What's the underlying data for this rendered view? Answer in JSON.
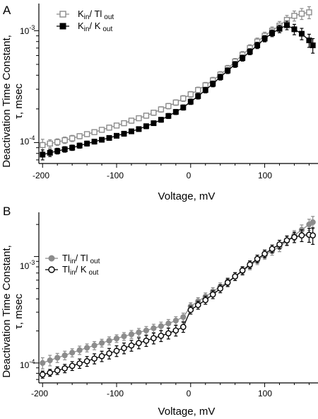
{
  "figure": {
    "panels": [
      {
        "letter": "A",
        "ylabel_line1": "Deactivation Time Constant,",
        "ylabel_line2": "τ, msec",
        "xlabel": "Voltage, mV",
        "xtick_labels": [
          "-200",
          "-100",
          "0",
          "100"
        ],
        "ytick_labels": [
          "10",
          "10"
        ],
        "ytick_exponents": [
          "-4",
          "-3"
        ],
        "legend": [
          {
            "main": "K",
            "sub1": "in",
            "mid": "/ Tl",
            "sub2": "out"
          },
          {
            "main": "K",
            "sub1": "in",
            "mid": "/ K",
            "sub2": "out"
          }
        ]
      },
      {
        "letter": "B",
        "ylabel_line1": "Deactivation Time Constant,",
        "ylabel_line2": "τ, msec",
        "xlabel": "Voltage, mV",
        "xtick_labels": [
          "-200",
          "-100",
          "0",
          "100"
        ],
        "ytick_labels": [
          "10",
          "10"
        ],
        "ytick_exponents": [
          "-4",
          "-3"
        ],
        "legend": [
          {
            "main": "Tl",
            "sub1": "in",
            "mid": "/ Tl",
            "sub2": "out"
          },
          {
            "main": "Tl",
            "sub1": "in",
            "mid": "/ K",
            "sub2": "out"
          }
        ]
      }
    ]
  },
  "chart_data": [
    {
      "type": "scatter",
      "panel": "A",
      "xlabel": "Voltage, mV",
      "ylabel": "Deactivation Time Constant, τ, msec",
      "xlim": [
        -205,
        172
      ],
      "ylim": [
        6.5e-05,
        0.00175
      ],
      "yscale": "log",
      "x_ticks": [
        -200,
        -100,
        0,
        100
      ],
      "y_ticks": [
        0.0001,
        0.001
      ],
      "grid": false,
      "legend_position": "top-left",
      "series": [
        {
          "name": "Kin/ Tlout",
          "color": "#8c8c8c",
          "marker": "open-square",
          "x": [
            -200,
            -190,
            -180,
            -170,
            -160,
            -150,
            -140,
            -130,
            -120,
            -110,
            -100,
            -90,
            -80,
            -70,
            -60,
            -50,
            -40,
            -30,
            -20,
            -10,
            0,
            10,
            20,
            30,
            40,
            50,
            60,
            70,
            80,
            90,
            100,
            110,
            120,
            130,
            140,
            150,
            160
          ],
          "y": [
            9.5e-05,
            9.8e-05,
            0.000101,
            0.000105,
            0.000109,
            0.000114,
            0.000119,
            0.000124,
            0.00013,
            0.000136,
            0.000142,
            0.000149,
            0.000157,
            0.000165,
            0.000174,
            0.000185,
            0.000198,
            0.000212,
            0.000228,
            0.000248,
            0.00027,
            0.000295,
            0.000325,
            0.00036,
            0.000405,
            0.00046,
            0.00053,
            0.00061,
            0.0007,
            0.0008,
            0.0009,
            0.001,
            0.00111,
            0.00125,
            0.00136,
            0.00142,
            0.00146
          ],
          "error": [
            1.2e-05,
            8e-06,
            7e-06,
            7e-06,
            7e-06,
            6e-06,
            6e-06,
            6e-06,
            6e-06,
            7e-06,
            7e-06,
            7e-06,
            8e-06,
            8e-06,
            9e-06,
            1e-05,
            1.1e-05,
            1.2e-05,
            1.3e-05,
            1.5e-05,
            1.6e-05,
            1.8e-05,
            2e-05,
            2.3e-05,
            2.6e-05,
            3e-05,
            3.5e-05,
            4.2e-05,
            5e-05,
            6e-05,
            7e-05,
            8e-05,
            0.0001,
            0.00012,
            0.00014,
            0.00016,
            0.00018
          ]
        },
        {
          "name": "Kin/ Kout",
          "color": "#000000",
          "marker": "filled-square",
          "x": [
            -200,
            -190,
            -180,
            -170,
            -160,
            -150,
            -140,
            -130,
            -120,
            -110,
            -100,
            -90,
            -80,
            -70,
            -60,
            -50,
            -40,
            -30,
            -20,
            -10,
            0,
            10,
            20,
            30,
            40,
            50,
            60,
            70,
            80,
            90,
            100,
            110,
            120,
            130,
            140,
            150,
            160,
            165
          ],
          "y": [
            7.8e-05,
            8.1e-05,
            8.4e-05,
            8.7e-05,
            9e-05,
            9.4e-05,
            9.8e-05,
            0.000102,
            0.000106,
            0.00011,
            0.000115,
            0.00012,
            0.000126,
            0.000132,
            0.00014,
            0.000149,
            0.00016,
            0.000173,
            0.000188,
            0.000206,
            0.000232,
            0.00026,
            0.000295,
            0.000335,
            0.000385,
            0.00044,
            0.0005,
            0.00057,
            0.00065,
            0.00074,
            0.00085,
            0.00095,
            0.00104,
            0.00112,
            0.00103,
            0.00094,
            0.00082,
            0.00074
          ],
          "error": [
            8e-06,
            6e-06,
            5e-06,
            5e-06,
            5e-06,
            5e-06,
            5e-06,
            5e-06,
            5e-06,
            5e-06,
            5e-06,
            6e-06,
            6e-06,
            6e-06,
            7e-06,
            7e-06,
            8e-06,
            9e-06,
            1e-05,
            1.1e-05,
            1.3e-05,
            1.5e-05,
            1.7e-05,
            2e-05,
            2.3e-05,
            2.6e-05,
            3e-05,
            3.5e-05,
            4e-05,
            4.8e-05,
            5.5e-05,
            6.5e-05,
            8e-05,
            0.0001,
            0.00011,
            0.00011,
            0.00011,
            0.00011
          ]
        }
      ]
    },
    {
      "type": "scatter",
      "panel": "B",
      "xlabel": "Voltage, mV",
      "ylabel": "Deactivation Time Constant, τ, msec",
      "xlim": [
        -205,
        172
      ],
      "ylim": [
        6.5e-05,
        0.0026
      ],
      "yscale": "log",
      "x_ticks": [
        -200,
        -100,
        0,
        100
      ],
      "y_ticks": [
        0.0001,
        0.001
      ],
      "grid": false,
      "legend_position": "top-left",
      "series": [
        {
          "name": "Tlin/ Tlout",
          "color": "#8c8c8c",
          "marker": "filled-circle",
          "x": [
            -200,
            -190,
            -180,
            -170,
            -160,
            -150,
            -140,
            -130,
            -120,
            -110,
            -100,
            -90,
            -80,
            -70,
            -60,
            -50,
            -40,
            -30,
            -20,
            -10,
            0,
            10,
            20,
            30,
            40,
            50,
            60,
            70,
            80,
            90,
            100,
            110,
            120,
            130,
            140,
            150,
            160,
            165
          ],
          "y": [
            0.0001,
            0.000106,
            0.000112,
            0.000118,
            0.000125,
            0.000132,
            0.000139,
            0.000146,
            0.000154,
            0.000162,
            0.00017,
            0.000178,
            0.000186,
            0.000194,
            0.000202,
            0.000212,
            0.000222,
            0.000235,
            0.00025,
            0.00027,
            0.00034,
            0.00038,
            0.00042,
            0.00047,
            0.00052,
            0.00058,
            0.00065,
            0.00073,
            0.00082,
            0.00092,
            0.00103,
            0.00113,
            0.00123,
            0.0014,
            0.00158,
            0.00178,
            0.002,
            0.0021
          ],
          "error": [
            1.2e-05,
            1.2e-05,
            1.1e-05,
            1.1e-05,
            1.1e-05,
            1.2e-05,
            1.2e-05,
            1.3e-05,
            1.3e-05,
            1.4e-05,
            1.4e-05,
            1.5e-05,
            1.6e-05,
            1.7e-05,
            1.8e-05,
            1.9e-05,
            2e-05,
            2.1e-05,
            2.2e-05,
            2.4e-05,
            2.8e-05,
            3.1e-05,
            3.5e-05,
            4e-05,
            4.5e-05,
            5e-05,
            5.6e-05,
            6.3e-05,
            7e-05,
            8e-05,
            9e-05,
            0.0001,
            0.00012,
            0.00014,
            0.00017,
            0.0002,
            0.00024,
            0.00028
          ]
        },
        {
          "name": "Tlin/ Kout",
          "color": "#000000",
          "marker": "open-circle",
          "x": [
            -200,
            -190,
            -180,
            -170,
            -160,
            -150,
            -140,
            -130,
            -120,
            -110,
            -100,
            -90,
            -80,
            -70,
            -60,
            -50,
            -40,
            -30,
            -20,
            -10,
            0,
            10,
            20,
            30,
            40,
            50,
            60,
            70,
            80,
            90,
            100,
            110,
            120,
            130,
            140,
            150,
            160,
            165
          ],
          "y": [
            7.8e-05,
            8.1e-05,
            8.5e-05,
            8.9e-05,
            9.4e-05,
            9.9e-05,
            0.000104,
            0.00011,
            0.000116,
            0.000123,
            0.00013,
            0.000138,
            0.000146,
            0.000154,
            0.000162,
            0.000171,
            0.00018,
            0.00019,
            0.000202,
            0.000218,
            0.000315,
            0.00035,
            0.00039,
            0.00044,
            0.0005,
            0.00057,
            0.00065,
            0.00074,
            0.00084,
            0.00095,
            0.00106,
            0.00118,
            0.0013,
            0.00142,
            0.00152,
            0.00158,
            0.0016,
            0.00158
          ],
          "error": [
            6e-06,
            6e-06,
            7e-06,
            8e-06,
            9e-06,
            1e-05,
            1.1e-05,
            1.2e-05,
            1.3e-05,
            1.4e-05,
            1.5e-05,
            1.6e-05,
            1.7e-05,
            1.8e-05,
            1.9e-05,
            2e-05,
            2.1e-05,
            2.2e-05,
            2.3e-05,
            2.4e-05,
            2.7e-05,
            3e-05,
            3.4e-05,
            3.8e-05,
            4.3e-05,
            4.8e-05,
            5.5e-05,
            6.2e-05,
            7e-05,
            8e-05,
            9e-05,
            0.0001,
            0.00012,
            0.00014,
            0.00017,
            0.0002,
            0.00024,
            0.00028
          ]
        }
      ]
    }
  ]
}
